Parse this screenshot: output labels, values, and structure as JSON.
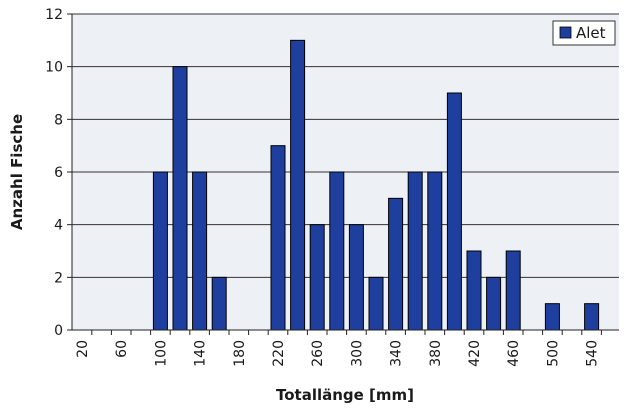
{
  "chart_data": {
    "type": "bar",
    "xlabel": "Totallänge [mm]",
    "ylabel": "Anzahl Fische",
    "ylim": [
      0,
      12
    ],
    "yticks": [
      0,
      2,
      4,
      6,
      8,
      10,
      12
    ],
    "grid": true,
    "legend_position": "top-right",
    "categories": [
      "20",
      "40",
      "60",
      "80",
      "100",
      "120",
      "140",
      "160",
      "180",
      "200",
      "220",
      "240",
      "260",
      "280",
      "300",
      "320",
      "340",
      "360",
      "380",
      "400",
      "420",
      "440",
      "460",
      "480",
      "500",
      "520",
      "540"
    ],
    "xtick_labels": [
      "20",
      "60",
      "100",
      "140",
      "180",
      "220",
      "260",
      "300",
      "340",
      "380",
      "420",
      "460",
      "500",
      "540"
    ],
    "series": [
      {
        "name": "Alet",
        "color": "#1f3f9f",
        "values": [
          0,
          0,
          0,
          0,
          6,
          10,
          6,
          2,
          0,
          0,
          7,
          11,
          4,
          6,
          4,
          2,
          5,
          6,
          6,
          9,
          3,
          2,
          3,
          0,
          1,
          0,
          1
        ]
      }
    ]
  }
}
